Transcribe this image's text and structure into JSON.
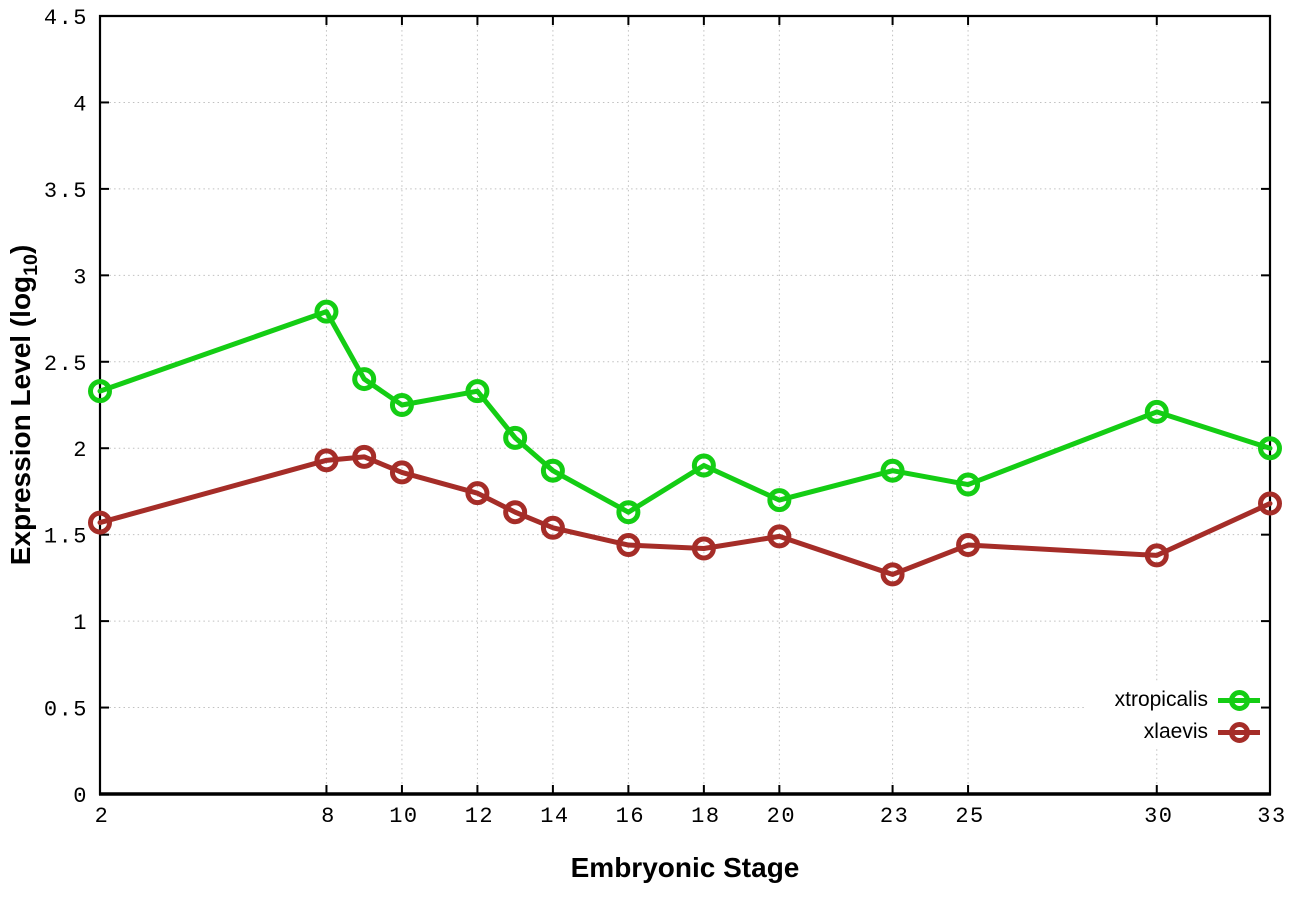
{
  "chart_data": {
    "type": "line",
    "title": "",
    "xlabel": "Embryonic Stage",
    "ylabel": {
      "prefix": "Expression Level (log",
      "sub": "10",
      "suffix": ")"
    },
    "xlim": [
      2,
      33
    ],
    "ylim": [
      0,
      4.5
    ],
    "grid": true,
    "legend_position": "bottom-right-inside",
    "x_ticks": [
      {
        "v": 2,
        "label": "2"
      },
      {
        "v": 8,
        "label": "8"
      },
      {
        "v": 10,
        "label": "10"
      },
      {
        "v": 12,
        "label": "12"
      },
      {
        "v": 14,
        "label": "14"
      },
      {
        "v": 16,
        "label": "16"
      },
      {
        "v": 18,
        "label": "18"
      },
      {
        "v": 20,
        "label": "20"
      },
      {
        "v": 23,
        "label": "23"
      },
      {
        "v": 25,
        "label": "25"
      },
      {
        "v": 30,
        "label": "30"
      },
      {
        "v": 33,
        "label": "33"
      }
    ],
    "y_ticks": [
      {
        "v": 0,
        "label": "0"
      },
      {
        "v": 0.5,
        "label": "0.5"
      },
      {
        "v": 1,
        "label": "1"
      },
      {
        "v": 1.5,
        "label": "1.5"
      },
      {
        "v": 2,
        "label": "2"
      },
      {
        "v": 2.5,
        "label": "2.5"
      },
      {
        "v": 3,
        "label": "3"
      },
      {
        "v": 3.5,
        "label": "3.5"
      },
      {
        "v": 4,
        "label": "4"
      },
      {
        "v": 4.5,
        "label": "4.5"
      }
    ],
    "x": [
      2,
      8,
      9,
      10,
      12,
      13,
      14,
      16,
      18,
      20,
      23,
      25,
      30,
      33
    ],
    "series": [
      {
        "name": "xtropicalis",
        "color": "#14cd14",
        "marker": "open-circle",
        "values": [
          2.33,
          2.79,
          2.4,
          2.25,
          2.33,
          2.06,
          1.87,
          1.63,
          1.9,
          1.7,
          1.87,
          1.79,
          2.21,
          2.0
        ]
      },
      {
        "name": "xlaevis",
        "color": "#a52d28",
        "marker": "open-circle",
        "values": [
          1.57,
          1.93,
          1.95,
          1.86,
          1.74,
          1.63,
          1.54,
          1.44,
          1.42,
          1.49,
          1.27,
          1.44,
          1.38,
          1.68
        ]
      }
    ],
    "colors": {
      "background": "#ffffff",
      "grid": "#c0c0c0",
      "axis": "#000000",
      "tick_label": "#000000"
    }
  }
}
